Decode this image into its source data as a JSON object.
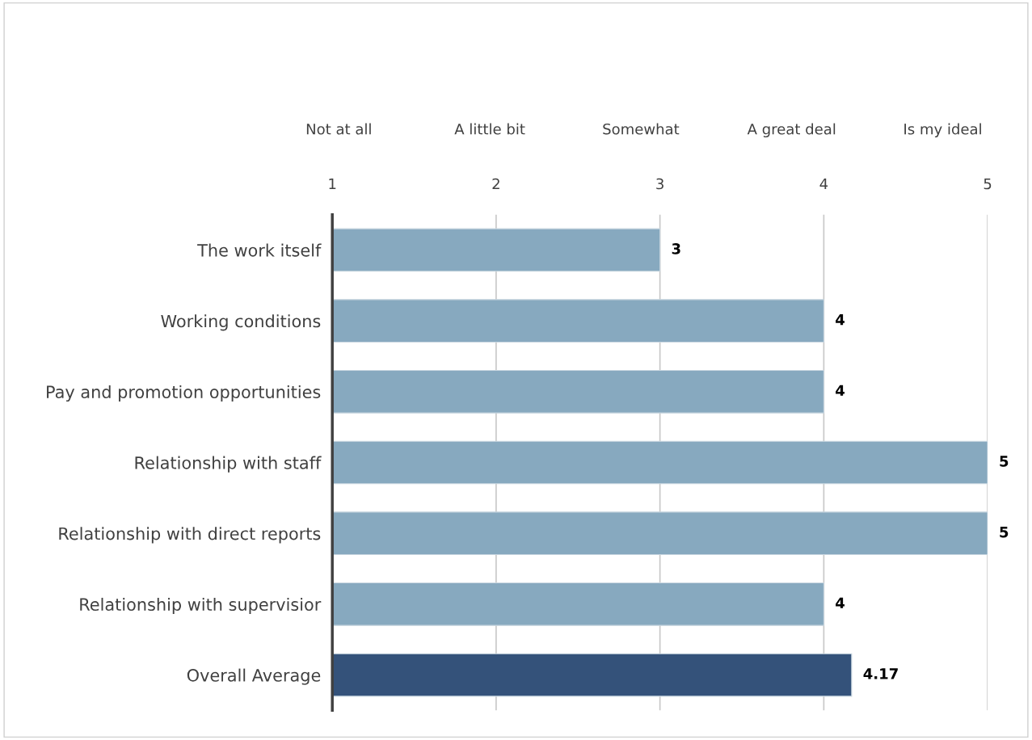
{
  "chart_data": {
    "type": "bar",
    "orientation": "horizontal",
    "categories": [
      "The work itself",
      "Working conditions",
      "Pay and promotion opportunities",
      "Relationship with staff",
      "Relationship with direct reports",
      "Relationship with supervisior",
      "Overall Average"
    ],
    "values": [
      3,
      4,
      4,
      5,
      5,
      4,
      4.17
    ],
    "colors": [
      "#87a9bf",
      "#87a9bf",
      "#87a9bf",
      "#87a9bf",
      "#87a9bf",
      "#87a9bf",
      "#34527a"
    ],
    "xlim": [
      1,
      5
    ],
    "xticks": [
      1,
      2,
      3,
      4,
      5
    ],
    "annotations": [
      "Not at all",
      "A little bit",
      "Somewhat",
      "A great deal",
      "Is my ideal"
    ],
    "grid": "x",
    "data_labels": true
  }
}
